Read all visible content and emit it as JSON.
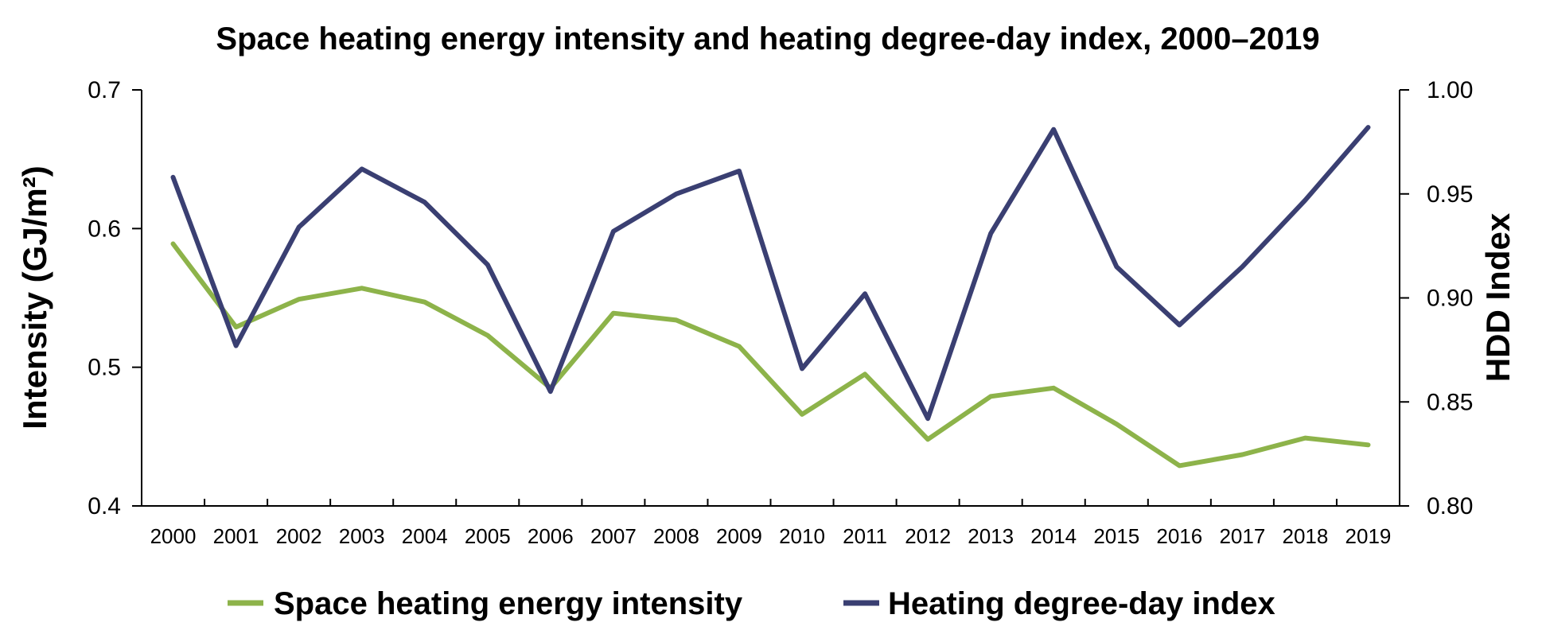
{
  "chart_data": {
    "type": "line",
    "title": "Space heating energy intensity and heating degree-day index, 2000–2019",
    "xlabel": "",
    "ylabel": "Intensity (GJ/m²)",
    "y2label": "HDD Index",
    "categories": [
      "2000",
      "2001",
      "2002",
      "2003",
      "2004",
      "2005",
      "2006",
      "2007",
      "2008",
      "2009",
      "2010",
      "2011",
      "2012",
      "2013",
      "2014",
      "2015",
      "2016",
      "2017",
      "2018",
      "2019"
    ],
    "ylim": [
      0.4,
      0.7
    ],
    "y2lim": [
      0.8,
      1.0
    ],
    "yticks": [
      "0.4",
      "0.5",
      "0.6",
      "0.7"
    ],
    "y2ticks": [
      "0.80",
      "0.85",
      "0.90",
      "0.95",
      "1.00"
    ],
    "grid": false,
    "legend_position": "bottom",
    "series": [
      {
        "name": "Space heating energy intensity",
        "axis": "left",
        "color": "#8db34a",
        "values": [
          0.589,
          0.529,
          0.549,
          0.557,
          0.547,
          0.523,
          0.485,
          0.539,
          0.534,
          0.515,
          0.466,
          0.495,
          0.448,
          0.479,
          0.485,
          0.459,
          0.429,
          0.437,
          0.449,
          0.444
        ]
      },
      {
        "name": "Heating degree-day index",
        "axis": "right",
        "color": "#3a3f72",
        "values": [
          0.958,
          0.877,
          0.934,
          0.962,
          0.946,
          0.916,
          0.855,
          0.932,
          0.95,
          0.961,
          0.866,
          0.902,
          0.842,
          0.931,
          0.981,
          0.915,
          0.887,
          0.915,
          0.947,
          0.982
        ]
      }
    ]
  }
}
